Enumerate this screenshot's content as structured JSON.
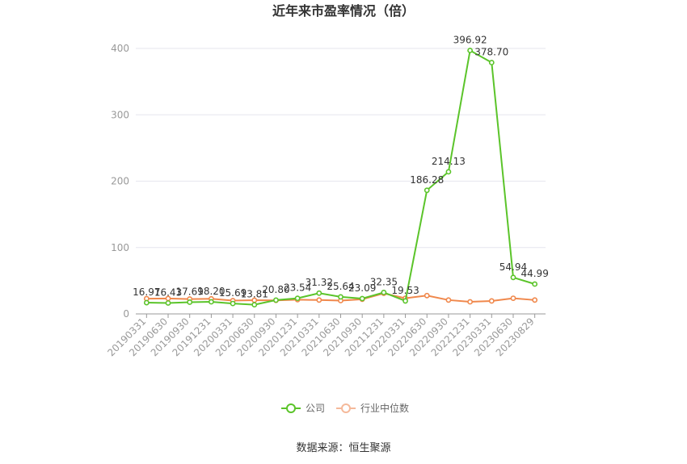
{
  "chart_data": {
    "type": "line",
    "title": "近年来市盈率情况（倍）",
    "categories": [
      "20190331",
      "20190630",
      "20190930",
      "20191231",
      "20200331",
      "20200630",
      "20200930",
      "20201231",
      "20210331",
      "20210630",
      "20210930",
      "20211231",
      "20220331",
      "20220630",
      "20220930",
      "20221231",
      "20230331",
      "20230630",
      "20230829"
    ],
    "series": [
      {
        "name": "公司",
        "color": "#5bc42a",
        "values": [
          16.97,
          16.43,
          17.69,
          18.2,
          15.69,
          13.81,
          20.8,
          23.54,
          31.32,
          25.64,
          23.09,
          32.35,
          19.53,
          186.28,
          214.13,
          396.92,
          378.7,
          54.94,
          44.99
        ],
        "labels": [
          "16.97",
          "16.43",
          "17.69",
          "18.20",
          "15.69",
          "13.81",
          "20.80",
          "23.54",
          "31.32",
          "25.64",
          "23.09",
          "32.35",
          "19.53",
          "186.28",
          "214.13",
          "396.92",
          "378.70",
          "54.94",
          "44.99"
        ]
      },
      {
        "name": "行业中位数",
        "color": "#f0884c",
        "values": [
          23.0,
          23.2,
          22.4,
          22.8,
          20.0,
          20.6,
          20.4,
          21.4,
          20.9,
          20.1,
          22.1,
          31.0,
          23.6,
          27.6,
          20.9,
          18.2,
          19.5,
          23.6,
          20.9
        ]
      }
    ],
    "yticks": [
      "0",
      "100",
      "200",
      "300",
      "400"
    ],
    "ylim": [
      0,
      420
    ],
    "grid": true,
    "legend_position": "bottom",
    "source": "数据来源：恒生聚源"
  }
}
